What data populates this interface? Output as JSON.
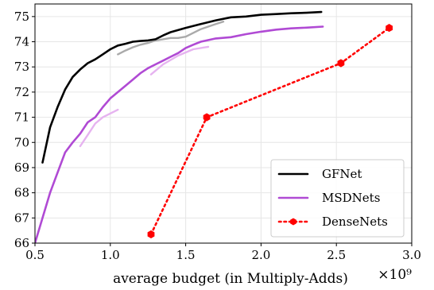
{
  "chart_data": {
    "type": "line",
    "xlabel": "average budget (in Multiply-Adds)",
    "x_multiplier": "×10⁹",
    "ylabel": "",
    "xlim": [
      0.5,
      3.0
    ],
    "ylim": [
      66,
      75.5
    ],
    "xticks": [
      0.5,
      1.0,
      1.5,
      2.0,
      2.5,
      3.0
    ],
    "xtick_labels": [
      "0.5",
      "1.0",
      "1.5",
      "2.0",
      "2.5",
      "3.0"
    ],
    "yticks": [
      66,
      67,
      68,
      69,
      70,
      71,
      72,
      73,
      74,
      75
    ],
    "ytick_labels": [
      "66",
      "67",
      "68",
      "69",
      "70",
      "71",
      "72",
      "73",
      "74",
      "75"
    ],
    "grid": true,
    "legend_position": "bottom-right",
    "series": [
      {
        "name": "GFNet",
        "color": "#000000",
        "style": "solid",
        "points": [
          [
            0.55,
            69.2
          ],
          [
            0.6,
            70.6
          ],
          [
            0.65,
            71.4
          ],
          [
            0.7,
            72.1
          ],
          [
            0.75,
            72.6
          ],
          [
            0.8,
            72.9
          ],
          [
            0.85,
            73.15
          ],
          [
            0.9,
            73.3
          ],
          [
            0.95,
            73.5
          ],
          [
            1.0,
            73.7
          ],
          [
            1.05,
            73.85
          ],
          [
            1.1,
            73.92
          ],
          [
            1.15,
            74.0
          ],
          [
            1.2,
            74.03
          ],
          [
            1.25,
            74.05
          ],
          [
            1.3,
            74.1
          ],
          [
            1.35,
            74.25
          ],
          [
            1.4,
            74.38
          ],
          [
            1.5,
            74.55
          ],
          [
            1.6,
            74.7
          ],
          [
            1.7,
            74.85
          ],
          [
            1.8,
            74.97
          ],
          [
            1.9,
            75.0
          ],
          [
            2.0,
            75.07
          ],
          [
            2.1,
            75.1
          ],
          [
            2.2,
            75.13
          ],
          [
            2.3,
            75.15
          ],
          [
            2.4,
            75.18
          ]
        ]
      },
      {
        "name": "MSDNets",
        "color": "#b04ad4",
        "style": "solid",
        "points": [
          [
            0.5,
            66.0
          ],
          [
            0.55,
            67.0
          ],
          [
            0.6,
            68.0
          ],
          [
            0.65,
            68.8
          ],
          [
            0.7,
            69.6
          ],
          [
            0.75,
            70.0
          ],
          [
            0.8,
            70.35
          ],
          [
            0.85,
            70.8
          ],
          [
            0.9,
            71.0
          ],
          [
            0.95,
            71.4
          ],
          [
            1.0,
            71.75
          ],
          [
            1.05,
            72.0
          ],
          [
            1.1,
            72.25
          ],
          [
            1.15,
            72.5
          ],
          [
            1.2,
            72.75
          ],
          [
            1.25,
            72.95
          ],
          [
            1.3,
            73.1
          ],
          [
            1.35,
            73.25
          ],
          [
            1.4,
            73.4
          ],
          [
            1.45,
            73.55
          ],
          [
            1.5,
            73.75
          ],
          [
            1.55,
            73.88
          ],
          [
            1.6,
            74.0
          ],
          [
            1.7,
            74.13
          ],
          [
            1.8,
            74.18
          ],
          [
            1.9,
            74.3
          ],
          [
            2.0,
            74.4
          ],
          [
            2.1,
            74.48
          ],
          [
            2.2,
            74.53
          ],
          [
            2.3,
            74.56
          ],
          [
            2.41,
            74.6
          ]
        ]
      },
      {
        "name": "DenseNets",
        "color": "#ff0000",
        "style": "dotted",
        "marker": "hexagon",
        "points": [
          [
            1.27,
            66.35
          ],
          [
            1.64,
            71.0
          ],
          [
            2.53,
            73.15
          ],
          [
            2.85,
            74.55
          ]
        ]
      }
    ],
    "secondary_curves": [
      {
        "color": "#aaaaaa",
        "points": [
          [
            1.05,
            73.5
          ],
          [
            1.1,
            73.65
          ],
          [
            1.15,
            73.78
          ],
          [
            1.2,
            73.88
          ],
          [
            1.25,
            73.95
          ],
          [
            1.3,
            74.05
          ],
          [
            1.35,
            74.1
          ],
          [
            1.4,
            74.15
          ],
          [
            1.45,
            74.15
          ]
        ]
      },
      {
        "color": "#aaaaaa",
        "points": [
          [
            1.45,
            74.15
          ],
          [
            1.5,
            74.2
          ],
          [
            1.55,
            74.35
          ],
          [
            1.6,
            74.5
          ],
          [
            1.65,
            74.6
          ],
          [
            1.7,
            74.7
          ],
          [
            1.75,
            74.8
          ]
        ]
      },
      {
        "color": "#e6b3f0",
        "points": [
          [
            0.8,
            69.85
          ],
          [
            0.85,
            70.3
          ],
          [
            0.9,
            70.75
          ],
          [
            0.95,
            71.0
          ],
          [
            1.0,
            71.15
          ],
          [
            1.05,
            71.3
          ]
        ]
      },
      {
        "color": "#e6b3f0",
        "points": [
          [
            1.27,
            72.7
          ],
          [
            1.35,
            73.1
          ],
          [
            1.45,
            73.45
          ],
          [
            1.55,
            73.7
          ],
          [
            1.65,
            73.8
          ]
        ]
      }
    ]
  }
}
